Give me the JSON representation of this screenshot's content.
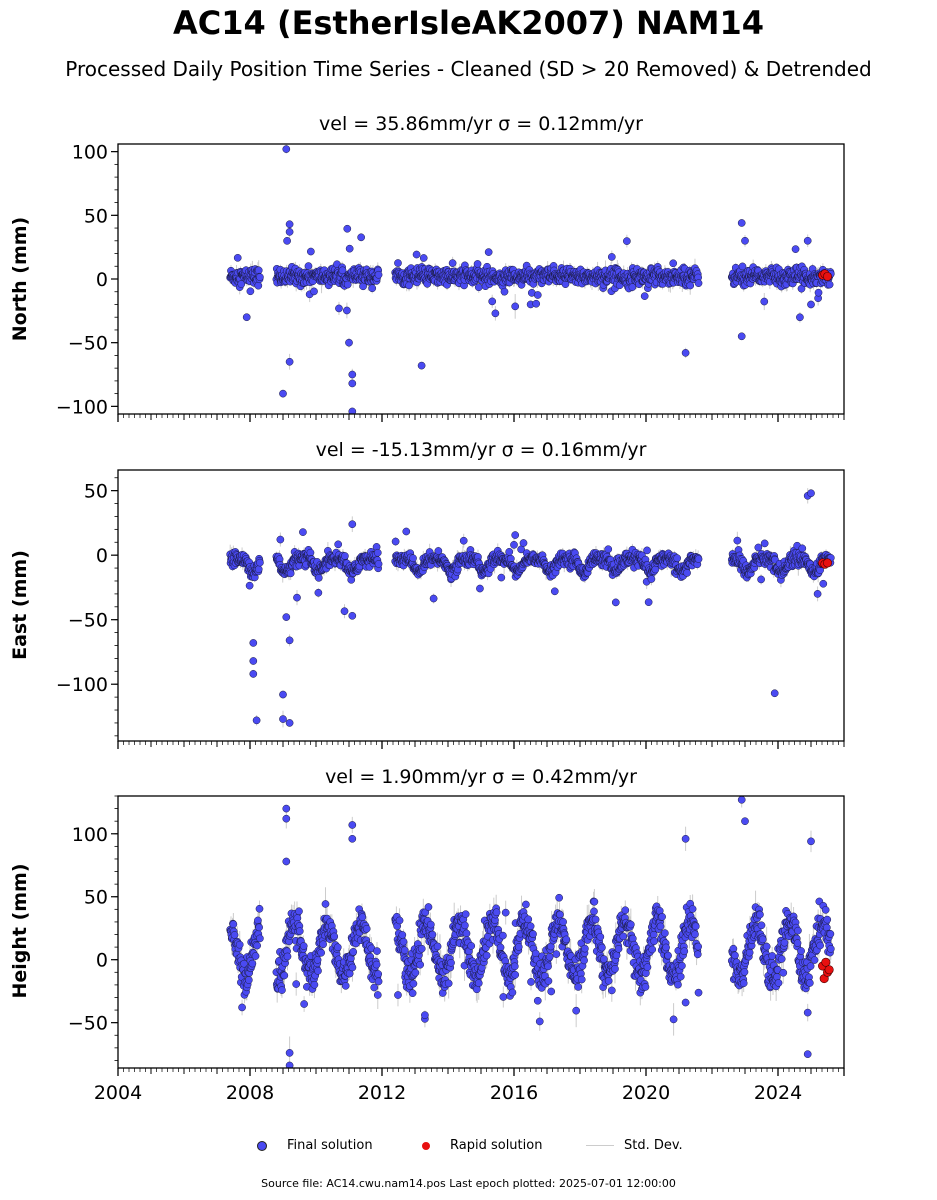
{
  "title": "AC14 (EstherIsleAK2007) NAM14",
  "subtitle": "Processed Daily Position Time Series - Cleaned (SD > 20 Removed) & Detrended",
  "legend": {
    "final": "Final solution",
    "rapid": "Rapid solution",
    "std": "Std. Dev."
  },
  "footer": "Source file: AC14.cwu.nam14.pos  Last epoch plotted: 2025-07-01 12:00:00",
  "colors": {
    "final": "#4a4af2",
    "rapid": "#e81010",
    "std": "#cccccc"
  },
  "chart_data": [
    {
      "type": "scatter",
      "title": "vel = 35.86mm/yr   σ = 0.12mm/yr",
      "ylabel": "North (mm)",
      "xlim": [
        2004,
        2026
      ],
      "ylim": [
        -106,
        106
      ],
      "yticks": [
        100,
        50,
        0,
        -50,
        -100
      ],
      "yticklabels": [
        "100",
        "50",
        "0",
        "−50",
        "−100"
      ],
      "segments": [
        [
          2007.4,
          2008.3
        ],
        [
          2008.8,
          2011.9
        ],
        [
          2012.4,
          2021.6
        ],
        [
          2022.6,
          2025.6
        ]
      ],
      "spikes": [
        [
          2007.9,
          -30
        ],
        [
          2009.1,
          102
        ],
        [
          2009.2,
          43
        ],
        [
          2009.2,
          37
        ],
        [
          2009.0,
          -90
        ],
        [
          2009.2,
          -65
        ],
        [
          2011.1,
          -104
        ],
        [
          2011.1,
          -75
        ],
        [
          2011.1,
          -82
        ],
        [
          2011.0,
          -50
        ],
        [
          2013.2,
          -68
        ],
        [
          2021.2,
          -58
        ],
        [
          2022.9,
          44
        ],
        [
          2023.0,
          30
        ],
        [
          2022.9,
          -45
        ],
        [
          2024.9,
          30
        ],
        [
          2025.0,
          -20
        ]
      ],
      "rapid": [
        [
          2025.35,
          3
        ],
        [
          2025.42,
          4
        ],
        [
          2025.5,
          2
        ]
      ]
    },
    {
      "type": "scatter",
      "title": "vel = -15.13mm/yr   σ = 0.16mm/yr",
      "ylabel": "East (mm)",
      "xlim": [
        2004,
        2026
      ],
      "ylim": [
        -144,
        66
      ],
      "yticks": [
        50,
        0,
        -50,
        -100
      ],
      "yticklabels": [
        "50",
        "0",
        "−50",
        "−100"
      ],
      "segments": [
        [
          2007.4,
          2008.3
        ],
        [
          2008.8,
          2011.9
        ],
        [
          2012.4,
          2021.6
        ],
        [
          2022.6,
          2025.6
        ]
      ],
      "spikes": [
        [
          2008.1,
          -68
        ],
        [
          2008.1,
          -92
        ],
        [
          2008.1,
          -82
        ],
        [
          2008.2,
          -128
        ],
        [
          2009.0,
          -108
        ],
        [
          2009.0,
          -127
        ],
        [
          2009.2,
          -130
        ],
        [
          2009.2,
          -66
        ],
        [
          2009.1,
          -48
        ],
        [
          2011.1,
          24
        ],
        [
          2011.1,
          -47
        ],
        [
          2016.0,
          8
        ],
        [
          2023.9,
          -107
        ],
        [
          2024.9,
          46
        ],
        [
          2025.0,
          48
        ],
        [
          2025.2,
          -30
        ]
      ],
      "rapid": [
        [
          2025.35,
          -6
        ],
        [
          2025.42,
          -7
        ],
        [
          2025.5,
          -6
        ]
      ]
    },
    {
      "type": "scatter",
      "title": "vel = 1.90mm/yr   σ = 0.42mm/yr",
      "ylabel": "Height (mm)",
      "xlim": [
        2004,
        2026
      ],
      "ylim": [
        -86,
        130
      ],
      "yticks": [
        100,
        50,
        0,
        -50
      ],
      "yticklabels": [
        "100",
        "50",
        "0",
        "−50"
      ],
      "segments": [
        [
          2007.4,
          2008.3
        ],
        [
          2008.8,
          2011.9
        ],
        [
          2012.4,
          2021.6
        ],
        [
          2022.6,
          2025.6
        ]
      ],
      "spikes": [
        [
          2009.1,
          120
        ],
        [
          2009.1,
          112
        ],
        [
          2009.1,
          78
        ],
        [
          2009.2,
          -74
        ],
        [
          2009.2,
          -84
        ],
        [
          2011.1,
          107
        ],
        [
          2011.1,
          96
        ],
        [
          2013.3,
          -47
        ],
        [
          2013.3,
          -44
        ],
        [
          2021.2,
          96
        ],
        [
          2021.2,
          -34
        ],
        [
          2022.9,
          127
        ],
        [
          2023.0,
          110
        ],
        [
          2025.0,
          94
        ],
        [
          2024.9,
          -75
        ],
        [
          2024.9,
          -42
        ]
      ],
      "rapid": [
        [
          2025.35,
          -5
        ],
        [
          2025.4,
          -15
        ],
        [
          2025.45,
          -2
        ],
        [
          2025.5,
          -10
        ],
        [
          2025.55,
          -8
        ]
      ]
    }
  ],
  "xticks": [
    2004,
    2008,
    2012,
    2016,
    2020,
    2024
  ],
  "xticklabels": [
    "2004",
    "2008",
    "2012",
    "2016",
    "2020",
    "2024"
  ]
}
